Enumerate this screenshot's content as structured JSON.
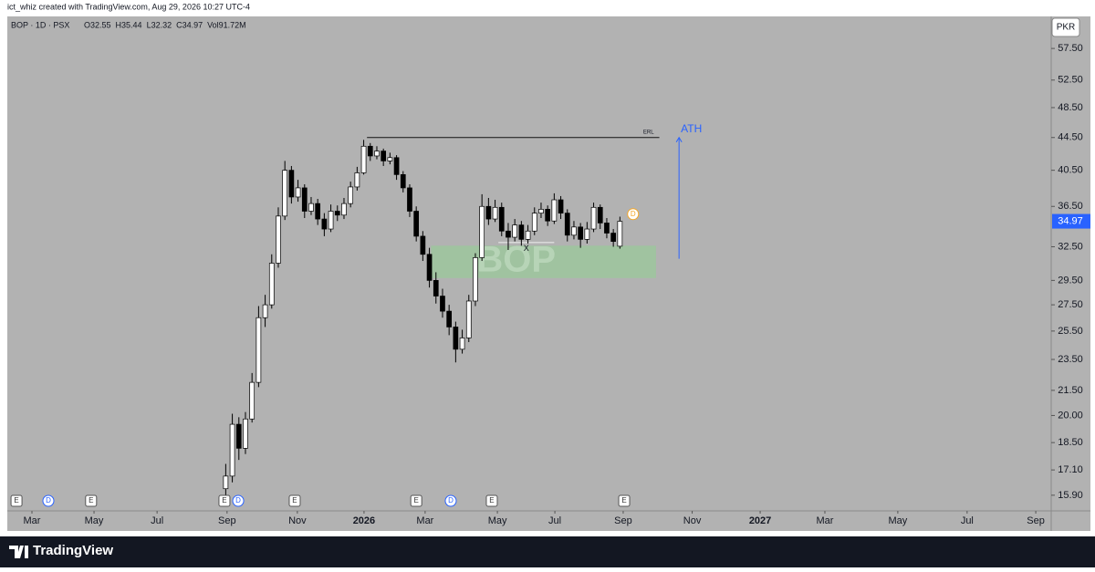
{
  "caption": "ict_whiz created with TradingView.com, Aug 29, 2026 10:27 UTC-4",
  "brand": "TradingView",
  "chart_data": {
    "type": "candlestick",
    "symbol": "BOP · 1D · PSX",
    "legend_values": [
      "O32.55",
      "H35.44",
      "L32.32",
      "C34.97",
      "Vol91.72M"
    ],
    "currency": "PKR",
    "watermark": "BOP",
    "log_scale": true,
    "ylim": [
      15.2,
      63.05
    ],
    "yticks": [
      {
        "value": 57.5,
        "label": "57.50"
      },
      {
        "value": 52.5,
        "label": "52.50"
      },
      {
        "value": 48.5,
        "label": "48.50"
      },
      {
        "value": 44.5,
        "label": "44.50"
      },
      {
        "value": 40.5,
        "label": "40.50"
      },
      {
        "value": 36.5,
        "label": "36.50"
      },
      {
        "value": 32.5,
        "label": "32.50"
      },
      {
        "value": 29.5,
        "label": "29.50"
      },
      {
        "value": 27.5,
        "label": "27.50"
      },
      {
        "value": 25.5,
        "label": "25.50"
      },
      {
        "value": 23.5,
        "label": "23.50"
      },
      {
        "value": 21.5,
        "label": "21.50"
      },
      {
        "value": 20,
        "label": "20.00"
      },
      {
        "value": 18.5,
        "label": "18.50"
      },
      {
        "value": 17.1,
        "label": "17.10"
      },
      {
        "value": 15.9,
        "label": "15.90"
      }
    ],
    "xlim": [
      -0.75,
      31.03
    ],
    "xticks": [
      {
        "value": 0,
        "label": "Mar"
      },
      {
        "value": 1.89,
        "label": "May"
      },
      {
        "value": 3.81,
        "label": "Jul"
      },
      {
        "value": 5.94,
        "label": "Sep"
      },
      {
        "value": 8.08,
        "label": "Nov"
      },
      {
        "value": 10.11,
        "label": "2026"
      },
      {
        "value": 11.97,
        "label": "Mar"
      },
      {
        "value": 14.17,
        "label": "May"
      },
      {
        "value": 15.92,
        "label": "Jul"
      },
      {
        "value": 18.0,
        "label": "Sep"
      },
      {
        "value": 20.1,
        "label": "Nov"
      },
      {
        "value": 22.17,
        "label": "2027"
      },
      {
        "value": 24.14,
        "label": "Mar"
      },
      {
        "value": 26.36,
        "label": "May"
      },
      {
        "value": 28.47,
        "label": "Jul"
      },
      {
        "value": 30.56,
        "label": "Sep"
      }
    ],
    "last_price": 34.97,
    "x": [
      5.9,
      6.1,
      6.3,
      6.5,
      6.7,
      6.9,
      7.1,
      7.3,
      7.5,
      7.7,
      7.9,
      8.1,
      8.3,
      8.5,
      8.7,
      8.9,
      9.1,
      9.3,
      9.5,
      9.7,
      9.9,
      10.1,
      10.3,
      10.5,
      10.7,
      10.9,
      11.1,
      11.3,
      11.5,
      11.7,
      11.9,
      12.1,
      12.3,
      12.5,
      12.7,
      12.9,
      13.1,
      13.3,
      13.5,
      13.7,
      13.9,
      14.1,
      14.3,
      14.5,
      14.7,
      14.9,
      15.1,
      15.3,
      15.5,
      15.7,
      15.9,
      16.1,
      16.3,
      16.5,
      16.7,
      16.9,
      17.1,
      17.3,
      17.5,
      17.7,
      17.9
    ],
    "open": [
      16.2,
      16.8,
      19.5,
      18.2,
      19.8,
      22.0,
      26.5,
      27.5,
      31.0,
      35.5,
      40.5,
      37.5,
      38.5,
      36.0,
      36.8,
      35.2,
      34.2,
      36.0,
      35.6,
      36.8,
      38.6,
      40.2,
      43.4,
      42.2,
      42.8,
      41.6,
      42.0,
      40.0,
      38.5,
      36.0,
      33.5,
      31.8,
      29.5,
      28.2,
      27.0,
      25.8,
      24.2,
      25.0,
      27.8,
      31.5,
      36.5,
      35.2,
      36.4,
      34.0,
      33.4,
      34.6,
      33.2,
      34.0,
      35.8,
      36.2,
      35.0,
      37.2,
      35.8,
      33.6,
      34.4,
      33.2,
      34.2,
      36.4,
      34.8,
      33.8,
      32.55
    ],
    "high": [
      17.4,
      20.1,
      19.9,
      20.2,
      22.6,
      27.4,
      28.3,
      31.8,
      36.4,
      41.6,
      41.0,
      39.4,
      38.9,
      37.5,
      37.3,
      35.8,
      36.7,
      36.6,
      37.4,
      39.2,
      40.9,
      44.2,
      43.8,
      43.4,
      43.1,
      42.6,
      42.3,
      40.4,
      38.9,
      36.5,
      34.0,
      32.4,
      30.2,
      28.8,
      27.5,
      26.2,
      25.6,
      28.3,
      31.9,
      37.8,
      37.4,
      37.2,
      36.9,
      34.8,
      35.2,
      35.0,
      34.6,
      36.4,
      36.9,
      36.6,
      37.9,
      37.6,
      36.2,
      35.0,
      34.8,
      34.9,
      36.9,
      36.7,
      35.3,
      34.2,
      35.44
    ],
    "low": [
      15.9,
      16.5,
      17.6,
      17.9,
      19.6,
      21.7,
      25.8,
      27.2,
      30.6,
      35.1,
      36.8,
      37.0,
      35.3,
      35.6,
      34.6,
      33.5,
      33.9,
      35.0,
      35.2,
      36.4,
      38.2,
      40.0,
      41.6,
      41.8,
      41.0,
      41.2,
      39.4,
      38.0,
      35.4,
      33.0,
      31.2,
      28.9,
      27.6,
      26.5,
      25.2,
      23.3,
      23.9,
      24.7,
      27.4,
      31.2,
      34.6,
      34.9,
      33.5,
      32.2,
      33.0,
      32.6,
      32.8,
      33.6,
      35.3,
      34.5,
      34.7,
      35.2,
      33.0,
      33.2,
      32.4,
      32.8,
      33.9,
      34.2,
      33.3,
      32.5,
      32.32
    ],
    "close": [
      16.8,
      19.5,
      18.2,
      19.8,
      22.0,
      26.5,
      27.5,
      31.0,
      35.5,
      40.5,
      37.5,
      38.5,
      36.0,
      36.8,
      35.2,
      34.2,
      36.0,
      35.6,
      36.8,
      38.6,
      40.2,
      43.4,
      42.2,
      42.8,
      41.6,
      42.0,
      40.0,
      38.5,
      36.0,
      33.5,
      31.8,
      29.5,
      28.2,
      27.0,
      25.8,
      24.2,
      25.0,
      27.8,
      31.5,
      36.5,
      35.2,
      36.4,
      34.0,
      33.4,
      34.6,
      33.2,
      34.0,
      35.8,
      36.2,
      35.0,
      37.2,
      35.8,
      33.6,
      34.4,
      33.2,
      34.2,
      36.4,
      34.8,
      33.8,
      33.0,
      34.97
    ],
    "levels": [
      {
        "label": "ERL",
        "price": 44.5,
        "x": [
          10.2,
          19.1
        ]
      },
      {
        "label": "X",
        "price": 32.9,
        "x": [
          14.2,
          15.9
        ]
      }
    ],
    "zone": {
      "price": [
        29.7,
        32.6
      ],
      "x": [
        12.15,
        19.0
      ],
      "color": "#9cc59c"
    },
    "arrow": {
      "label": "ATH",
      "price": [
        31.4,
        44.5
      ],
      "x": 19.7,
      "color": "#2962ff"
    },
    "dividend_marker": {
      "label": "D",
      "x": 18.3,
      "price": 35.7
    },
    "events": [
      {
        "label": "E",
        "x": -0.47
      },
      {
        "label": "D",
        "x": 0.5
      },
      {
        "label": "E",
        "x": 1.8
      },
      {
        "label": "E",
        "x": 5.86
      },
      {
        "label": "D",
        "x": 6.28
      },
      {
        "label": "E",
        "x": 8.0
      },
      {
        "label": "E",
        "x": 11.7
      },
      {
        "label": "D",
        "x": 12.75
      },
      {
        "label": "E",
        "x": 14.0
      },
      {
        "label": "E",
        "x": 18.03
      }
    ]
  }
}
